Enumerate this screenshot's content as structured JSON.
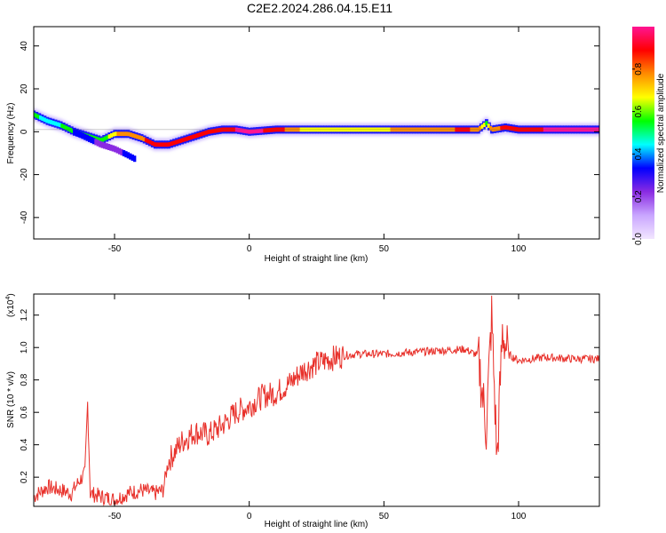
{
  "title": "C2E2.2024.286.04.15.E11",
  "chart_data": [
    {
      "type": "heatmap",
      "name": "spectrogram",
      "xlabel": "Height of straight line (km)",
      "ylabel": "Frequency (Hz)",
      "xlim": [
        -80,
        130
      ],
      "ylim": [
        -50,
        49
      ],
      "x_ticks": [
        -50,
        0,
        50,
        100
      ],
      "y_ticks": [
        40,
        20,
        0,
        -20,
        -40
      ],
      "colorbar": {
        "label": "Normalized spectral amplitude",
        "range": [
          0,
          1
        ],
        "ticks": [
          "0.0",
          "0.2",
          "0.4",
          "0.6",
          "0.8"
        ],
        "colormap": [
          "#f2e6ff",
          "#c9a6ff",
          "#8a2be2",
          "#0000ff",
          "#00ffff",
          "#00ff00",
          "#ffff00",
          "#ff8c00",
          "#ff0000",
          "#ff1493"
        ]
      },
      "ridge": {
        "description_values": "dominant frequency (Hz) vs height (km)",
        "x": [
          -80,
          -75,
          -70,
          -65,
          -60,
          -55,
          -50,
          -45,
          -40,
          -35,
          -30,
          -25,
          -20,
          -15,
          -10,
          -5,
          0,
          10,
          20,
          30,
          40,
          50,
          60,
          70,
          80,
          85,
          88,
          90,
          95,
          100,
          110,
          120,
          130
        ],
        "y": [
          8,
          5,
          3,
          0,
          -2,
          -4,
          -1,
          -1,
          -3,
          -6,
          -6,
          -4,
          -2,
          0,
          1,
          1,
          0,
          1,
          1,
          1,
          1,
          1,
          1,
          1,
          1,
          1,
          4,
          1,
          2,
          1,
          1,
          1,
          1
        ],
        "amplitude": [
          0.55,
          0.4,
          0.5,
          0.5,
          0.55,
          0.5,
          0.7,
          0.8,
          0.8,
          0.95,
          0.9,
          0.85,
          0.85,
          0.9,
          0.9,
          0.95,
          1.0,
          0.9,
          0.7,
          0.7,
          0.65,
          0.7,
          0.8,
          0.8,
          0.85,
          0.8,
          0.6,
          0.8,
          0.85,
          0.9,
          0.95,
          0.95,
          0.95
        ]
      },
      "branch": {
        "x": [
          -65,
          -60,
          -55,
          -50,
          -45,
          -42
        ],
        "y": [
          0,
          -3,
          -6,
          -8,
          -11,
          -13
        ],
        "amplitude": [
          0.3,
          0.3,
          0.25,
          0.25,
          0.3,
          0.3
        ]
      }
    },
    {
      "type": "line",
      "name": "snr",
      "xlabel": "Height of straight line (km)",
      "ylabel": "SNR (10 * v/v)",
      "y_multiplier": "(x10",
      "y_multiplier_exp": "4",
      "y_multiplier_close": ")",
      "xlim": [
        -80,
        130
      ],
      "ylim": [
        0.02,
        1.33
      ],
      "x_ticks": [
        -50,
        0,
        50,
        100
      ],
      "y_ticks": [
        0.2,
        0.4,
        0.6,
        0.8,
        1.0,
        1.2
      ],
      "color": "#e8302a",
      "series": [
        {
          "x": [
            -80,
            -75,
            -70,
            -66,
            -63,
            -61,
            -60,
            -59,
            -55,
            -50,
            -45,
            -40,
            -35,
            -32,
            -30,
            -25,
            -20,
            -15,
            -10,
            -5,
            0,
            5,
            10,
            15,
            20,
            25,
            30,
            35,
            40,
            50,
            60,
            70,
            80,
            85,
            88,
            90,
            92,
            94,
            96,
            100,
            110,
            120,
            130
          ],
          "y": [
            0.08,
            0.14,
            0.12,
            0.1,
            0.18,
            0.22,
            0.66,
            0.1,
            0.08,
            0.06,
            0.1,
            0.12,
            0.1,
            0.12,
            0.3,
            0.42,
            0.48,
            0.46,
            0.52,
            0.6,
            0.64,
            0.7,
            0.72,
            0.78,
            0.86,
            0.9,
            0.93,
            0.95,
            0.96,
            0.96,
            0.97,
            0.98,
            0.99,
            0.95,
            0.5,
            1.2,
            0.3,
            1.1,
            0.96,
            0.92,
            0.94,
            0.93,
            0.93
          ]
        }
      ]
    }
  ]
}
